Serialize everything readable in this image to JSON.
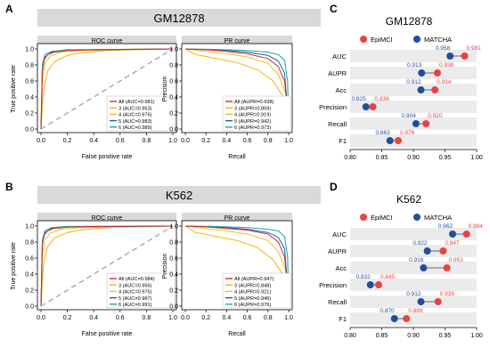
{
  "colors": {
    "all": "#d6283a",
    "class3": "#f4b400",
    "class4": "#e8c21c",
    "class5": "#1f5fa8",
    "class6": "#17a89a",
    "epimci": "#e8433f",
    "matcha": "#1f4f9c",
    "header_bg": "#d9d9d9",
    "row_bg": "#ebebeb",
    "diag": "#888888"
  },
  "panels": {
    "A": {
      "letter": "A",
      "title": "GM12878",
      "roc_title": "ROC curve",
      "pr_title": "PR curve"
    },
    "B": {
      "letter": "B",
      "title": "K562",
      "roc_title": "ROC curve",
      "pr_title": "PR curve"
    },
    "C": {
      "letter": "C",
      "title": "GM12878"
    },
    "D": {
      "letter": "D",
      "title": "K562"
    }
  },
  "axes": {
    "roc_xlabel": "False positive rate",
    "roc_ylabel": "True positive rate",
    "pr_xlabel": "Recall",
    "pr_ylabel": "Precision"
  },
  "chart_data": [
    {
      "id": "A-roc",
      "type": "line",
      "title": "ROC curve",
      "xlabel": "False positive rate",
      "ylabel": "True positive rate",
      "xlim": [
        0,
        1
      ],
      "ylim": [
        0,
        1
      ],
      "ticks": [
        "0.0",
        "0.2",
        "0.4",
        "0.6",
        "0.8",
        "1.0"
      ],
      "series": [
        {
          "name": "All (AUC=0.981)",
          "key": "all",
          "values": [
            [
              0,
              0
            ],
            [
              0.01,
              0.7
            ],
            [
              0.02,
              0.85
            ],
            [
              0.05,
              0.93
            ],
            [
              0.1,
              0.96
            ],
            [
              0.2,
              0.98
            ],
            [
              0.4,
              0.99
            ],
            [
              1,
              1
            ]
          ]
        },
        {
          "name": "3 (AUC=0.953)",
          "key": "class3",
          "values": [
            [
              0,
              0
            ],
            [
              0.02,
              0.5
            ],
            [
              0.05,
              0.72
            ],
            [
              0.1,
              0.84
            ],
            [
              0.2,
              0.92
            ],
            [
              0.3,
              0.95
            ],
            [
              0.5,
              0.98
            ],
            [
              1,
              1
            ]
          ]
        },
        {
          "name": "4 (AUC=0.976)",
          "key": "class4",
          "values": [
            [
              0,
              0
            ],
            [
              0.01,
              0.6
            ],
            [
              0.03,
              0.82
            ],
            [
              0.07,
              0.91
            ],
            [
              0.15,
              0.96
            ],
            [
              0.3,
              0.98
            ],
            [
              1,
              1
            ]
          ]
        },
        {
          "name": "5 (AUC=0.983)",
          "key": "class5",
          "values": [
            [
              0,
              0
            ],
            [
              0.01,
              0.75
            ],
            [
              0.03,
              0.9
            ],
            [
              0.08,
              0.96
            ],
            [
              0.2,
              0.985
            ],
            [
              1,
              1
            ]
          ]
        },
        {
          "name": "6 (AUC=0.989)",
          "key": "class6",
          "values": [
            [
              0,
              0
            ],
            [
              0.01,
              0.8
            ],
            [
              0.03,
              0.93
            ],
            [
              0.08,
              0.97
            ],
            [
              0.2,
              0.99
            ],
            [
              1,
              1
            ]
          ]
        }
      ]
    },
    {
      "id": "A-pr",
      "type": "line",
      "title": "PR curve",
      "xlabel": "Recall",
      "ylabel": "Precision",
      "xlim": [
        0,
        1
      ],
      "ylim": [
        0,
        1
      ],
      "ticks": [
        "0.0",
        "0.2",
        "0.4",
        "0.6",
        "0.8",
        "1.0"
      ],
      "series": [
        {
          "name": "All (AUPR=0.938)",
          "key": "all",
          "values": [
            [
              0,
              1
            ],
            [
              0.2,
              0.99
            ],
            [
              0.4,
              0.97
            ],
            [
              0.6,
              0.94
            ],
            [
              0.8,
              0.88
            ],
            [
              0.9,
              0.78
            ],
            [
              0.96,
              0.6
            ],
            [
              1,
              0.1
            ]
          ]
        },
        {
          "name": "3 (AUPR=0.859)",
          "key": "class3",
          "values": [
            [
              0,
              1
            ],
            [
              0.1,
              0.93
            ],
            [
              0.3,
              0.88
            ],
            [
              0.5,
              0.83
            ],
            [
              0.7,
              0.74
            ],
            [
              0.85,
              0.6
            ],
            [
              0.95,
              0.4
            ],
            [
              1,
              0.1
            ]
          ]
        },
        {
          "name": "4 (AUPR=0.919)",
          "key": "class4",
          "values": [
            [
              0,
              1
            ],
            [
              0.2,
              0.97
            ],
            [
              0.4,
              0.94
            ],
            [
              0.6,
              0.9
            ],
            [
              0.8,
              0.82
            ],
            [
              0.9,
              0.68
            ],
            [
              0.97,
              0.45
            ],
            [
              1,
              0.1
            ]
          ]
        },
        {
          "name": "5 (AUPR=0.942)",
          "key": "class5",
          "values": [
            [
              0,
              1
            ],
            [
              0.2,
              0.99
            ],
            [
              0.4,
              0.98
            ],
            [
              0.6,
              0.96
            ],
            [
              0.8,
              0.92
            ],
            [
              0.9,
              0.85
            ],
            [
              0.96,
              0.7
            ],
            [
              1,
              0.1
            ]
          ]
        },
        {
          "name": "6 (AUPR=0.973)",
          "key": "class6",
          "values": [
            [
              0,
              1
            ],
            [
              0.3,
              0.995
            ],
            [
              0.6,
              0.98
            ],
            [
              0.8,
              0.96
            ],
            [
              0.9,
              0.93
            ],
            [
              0.96,
              0.86
            ],
            [
              0.99,
              0.6
            ],
            [
              1,
              0.1
            ]
          ]
        }
      ]
    },
    {
      "id": "B-roc",
      "type": "line",
      "title": "ROC curve",
      "xlabel": "False positive rate",
      "ylabel": "True positive rate",
      "xlim": [
        0,
        1
      ],
      "ylim": [
        0,
        1
      ],
      "ticks": [
        "0.0",
        "0.2",
        "0.4",
        "0.6",
        "0.8",
        "1.0"
      ],
      "series": [
        {
          "name": "All (AUC=0.984)",
          "key": "all",
          "values": [
            [
              0,
              0
            ],
            [
              0.01,
              0.75
            ],
            [
              0.02,
              0.88
            ],
            [
              0.05,
              0.94
            ],
            [
              0.1,
              0.97
            ],
            [
              0.2,
              0.985
            ],
            [
              0.4,
              0.995
            ],
            [
              1,
              1
            ]
          ]
        },
        {
          "name": "3 (AUC=0.956)",
          "key": "class3",
          "values": [
            [
              0,
              0
            ],
            [
              0.02,
              0.55
            ],
            [
              0.05,
              0.74
            ],
            [
              0.1,
              0.85
            ],
            [
              0.2,
              0.92
            ],
            [
              0.3,
              0.95
            ],
            [
              0.5,
              0.98
            ],
            [
              1,
              1
            ]
          ]
        },
        {
          "name": "4 (AUC=0.975)",
          "key": "class4",
          "values": [
            [
              0,
              0
            ],
            [
              0.01,
              0.62
            ],
            [
              0.03,
              0.83
            ],
            [
              0.07,
              0.91
            ],
            [
              0.15,
              0.96
            ],
            [
              0.3,
              0.98
            ],
            [
              1,
              1
            ]
          ]
        },
        {
          "name": "5 (AUC=0.987)",
          "key": "class5",
          "values": [
            [
              0,
              0
            ],
            [
              0.01,
              0.78
            ],
            [
              0.03,
              0.92
            ],
            [
              0.08,
              0.97
            ],
            [
              0.2,
              0.99
            ],
            [
              1,
              1
            ]
          ]
        },
        {
          "name": "6 (AUC=0.991)",
          "key": "class6",
          "values": [
            [
              0,
              0
            ],
            [
              0.01,
              0.82
            ],
            [
              0.03,
              0.94
            ],
            [
              0.08,
              0.98
            ],
            [
              0.2,
              0.995
            ],
            [
              1,
              1
            ]
          ]
        }
      ]
    },
    {
      "id": "B-pr",
      "type": "line",
      "title": "PR curve",
      "xlabel": "Recall",
      "ylabel": "Precision",
      "xlim": [
        0,
        1
      ],
      "ylim": [
        0,
        1
      ],
      "ticks": [
        "0.0",
        "0.2",
        "0.4",
        "0.6",
        "0.8",
        "1.0"
      ],
      "series": [
        {
          "name": "All (AUPR=0.947)",
          "key": "all",
          "values": [
            [
              0,
              1
            ],
            [
              0.2,
              0.99
            ],
            [
              0.4,
              0.97
            ],
            [
              0.6,
              0.95
            ],
            [
              0.8,
              0.9
            ],
            [
              0.9,
              0.8
            ],
            [
              0.96,
              0.62
            ],
            [
              1,
              0.1
            ]
          ]
        },
        {
          "name": "3 (AUPR=0.848)",
          "key": "class3",
          "values": [
            [
              0,
              1
            ],
            [
              0.1,
              0.92
            ],
            [
              0.3,
              0.87
            ],
            [
              0.5,
              0.82
            ],
            [
              0.7,
              0.73
            ],
            [
              0.85,
              0.58
            ],
            [
              0.95,
              0.38
            ],
            [
              1,
              0.1
            ]
          ]
        },
        {
          "name": "4 (AUPR=0.921)",
          "key": "class4",
          "values": [
            [
              0,
              1
            ],
            [
              0.2,
              0.97
            ],
            [
              0.4,
              0.94
            ],
            [
              0.6,
              0.9
            ],
            [
              0.8,
              0.82
            ],
            [
              0.9,
              0.68
            ],
            [
              0.97,
              0.45
            ],
            [
              1,
              0.1
            ]
          ]
        },
        {
          "name": "5 (AUPR=0.946)",
          "key": "class5",
          "values": [
            [
              0,
              1
            ],
            [
              0.2,
              0.99
            ],
            [
              0.4,
              0.98
            ],
            [
              0.6,
              0.96
            ],
            [
              0.8,
              0.92
            ],
            [
              0.9,
              0.86
            ],
            [
              0.96,
              0.72
            ],
            [
              1,
              0.1
            ]
          ]
        },
        {
          "name": "6 (AUPR=0.976)",
          "key": "class6",
          "values": [
            [
              0,
              1
            ],
            [
              0.3,
              0.995
            ],
            [
              0.6,
              0.98
            ],
            [
              0.8,
              0.96
            ],
            [
              0.9,
              0.94
            ],
            [
              0.96,
              0.87
            ],
            [
              0.99,
              0.62
            ],
            [
              1,
              0.1
            ]
          ]
        }
      ]
    },
    {
      "id": "C",
      "type": "dumbbell",
      "title": "GM12878",
      "xlim": [
        0.8,
        1.0
      ],
      "ticks": [
        "0.80",
        "0.85",
        "0.90",
        "0.95",
        "1.00"
      ],
      "legend": [
        "EpiMCI",
        "MATCHA"
      ],
      "categories": [
        "AUC",
        "AUPR",
        "Acc",
        "Precision",
        "Recall",
        "F1"
      ],
      "series": [
        {
          "name": "EpiMCI",
          "values": [
            0.981,
            0.938,
            0.934,
            0.836,
            0.92,
            0.876
          ],
          "labels": [
            "0.981",
            "0.938",
            "0.934",
            "0.836",
            "0.920",
            "0.876"
          ]
        },
        {
          "name": "MATCHA",
          "values": [
            0.958,
            0.913,
            0.912,
            0.825,
            0.904,
            0.863
          ],
          "labels": [
            "0.958",
            "0.913",
            "0.912",
            "0.825",
            "0.904",
            "0.863"
          ]
        }
      ]
    },
    {
      "id": "D",
      "type": "dumbbell",
      "title": "K562",
      "xlim": [
        0.8,
        1.0
      ],
      "ticks": [
        "0.80",
        "0.85",
        "0.90",
        "0.95",
        "1.00"
      ],
      "legend": [
        "EpiMCI",
        "MATCHA"
      ],
      "categories": [
        "AUC",
        "AUPR",
        "Acc",
        "Precision",
        "Recall",
        "F1"
      ],
      "series": [
        {
          "name": "EpiMCI",
          "values": [
            0.984,
            0.947,
            0.953,
            0.845,
            0.939,
            0.889
          ],
          "labels": [
            "0.984",
            "0.947",
            "0.953",
            "0.845",
            "0.939",
            "0.889"
          ]
        },
        {
          "name": "MATCHA",
          "values": [
            0.962,
            0.922,
            0.916,
            0.832,
            0.912,
            0.87
          ],
          "labels": [
            "0.962",
            "0.922",
            "0.916",
            "0.832",
            "0.912",
            "0.870"
          ]
        }
      ]
    }
  ]
}
